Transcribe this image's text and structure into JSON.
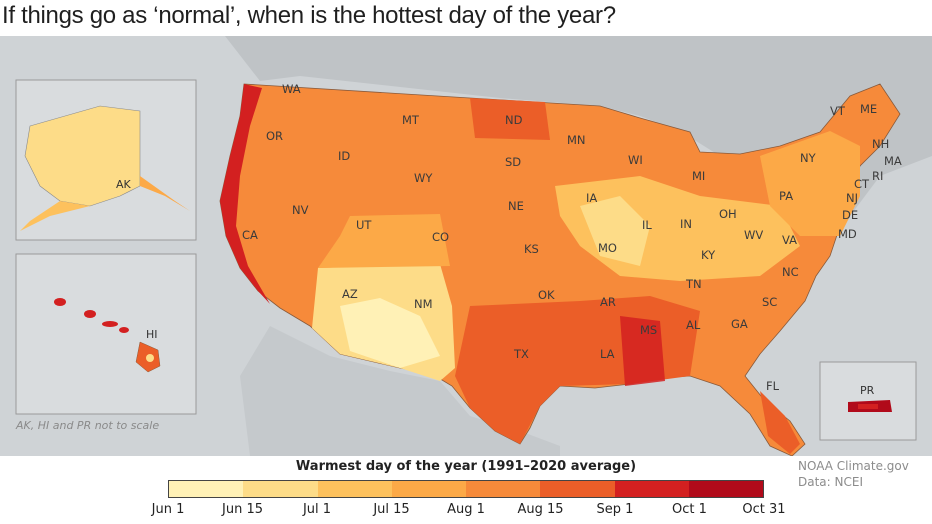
{
  "headline": "If things go as ‘normal’, when is the hottest day of the year?",
  "map": {
    "scale_note": "AK, HI and PR not to scale",
    "insets": {
      "alaska": "AK",
      "hawaii": "HI",
      "puerto_rico": "PR"
    },
    "states": [
      {
        "abbr": "WA",
        "period": "Aug 15"
      },
      {
        "abbr": "OR",
        "period": "Aug 1"
      },
      {
        "abbr": "CA",
        "period": "Aug 1"
      },
      {
        "abbr": "NV",
        "period": "Aug 1"
      },
      {
        "abbr": "ID",
        "period": "Aug 1"
      },
      {
        "abbr": "MT",
        "period": "Aug 1"
      },
      {
        "abbr": "WY",
        "period": "Aug 1"
      },
      {
        "abbr": "UT",
        "period": "Jul 15"
      },
      {
        "abbr": "CO",
        "period": "Jul 15"
      },
      {
        "abbr": "AZ",
        "period": "Jun 15"
      },
      {
        "abbr": "NM",
        "period": "Jun 15"
      },
      {
        "abbr": "ND",
        "period": "Aug 15"
      },
      {
        "abbr": "SD",
        "period": "Aug 1"
      },
      {
        "abbr": "NE",
        "period": "Aug 1"
      },
      {
        "abbr": "KS",
        "period": "Aug 1"
      },
      {
        "abbr": "OK",
        "period": "Aug 15"
      },
      {
        "abbr": "TX",
        "period": "Aug 15"
      },
      {
        "abbr": "MN",
        "period": "Jul 15"
      },
      {
        "abbr": "IA",
        "period": "Jul 1"
      },
      {
        "abbr": "MO",
        "period": "Jul 15"
      },
      {
        "abbr": "AR",
        "period": "Aug 15"
      },
      {
        "abbr": "LA",
        "period": "Aug 15"
      },
      {
        "abbr": "WI",
        "period": "Jul 15"
      },
      {
        "abbr": "IL",
        "period": "Jul 1"
      },
      {
        "abbr": "IN",
        "period": "Jul 1"
      },
      {
        "abbr": "MI",
        "period": "Jul 15"
      },
      {
        "abbr": "OH",
        "period": "Jul 1"
      },
      {
        "abbr": "KY",
        "period": "Jul 15"
      },
      {
        "abbr": "TN",
        "period": "Aug 1"
      },
      {
        "abbr": "MS",
        "period": "Aug 15"
      },
      {
        "abbr": "AL",
        "period": "Aug 1"
      },
      {
        "abbr": "GA",
        "period": "Aug 1"
      },
      {
        "abbr": "FL",
        "period": "Aug 15"
      },
      {
        "abbr": "SC",
        "period": "Aug 1"
      },
      {
        "abbr": "NC",
        "period": "Jul 15"
      },
      {
        "abbr": "VA",
        "period": "Jul 15"
      },
      {
        "abbr": "WV",
        "period": "Jul 1"
      },
      {
        "abbr": "PA",
        "period": "Jul 15"
      },
      {
        "abbr": "NY",
        "period": "Jul 15"
      },
      {
        "abbr": "VT",
        "period": "Jul 15"
      },
      {
        "abbr": "ME",
        "period": "Jul 15"
      },
      {
        "abbr": "NH",
        "period": "Jul 15"
      },
      {
        "abbr": "MA",
        "period": "Jul 15"
      },
      {
        "abbr": "RI",
        "period": "Jul 15"
      },
      {
        "abbr": "CT",
        "period": "Jul 15"
      },
      {
        "abbr": "NJ",
        "period": "Jul 15"
      },
      {
        "abbr": "DE",
        "period": "Jul 15"
      },
      {
        "abbr": "MD",
        "period": "Jul 15"
      }
    ]
  },
  "legend": {
    "title": "Warmest day of the year (1991–2020 average)",
    "colors": [
      "#fff1b6",
      "#fddc88",
      "#fdc15d",
      "#fca947",
      "#f68a3a",
      "#eb5e28",
      "#d32020",
      "#b10a1a",
      "#6b0010"
    ],
    "ticks": [
      "Jun 1",
      "Jun 15",
      "Jul 1",
      "Jul 15",
      "Aug 1",
      "Aug 15",
      "Sep 1",
      "Oct 1",
      "Oct 31"
    ]
  },
  "credit": {
    "line1": "NOAA Climate.gov",
    "line2": "Data: NCEI"
  }
}
